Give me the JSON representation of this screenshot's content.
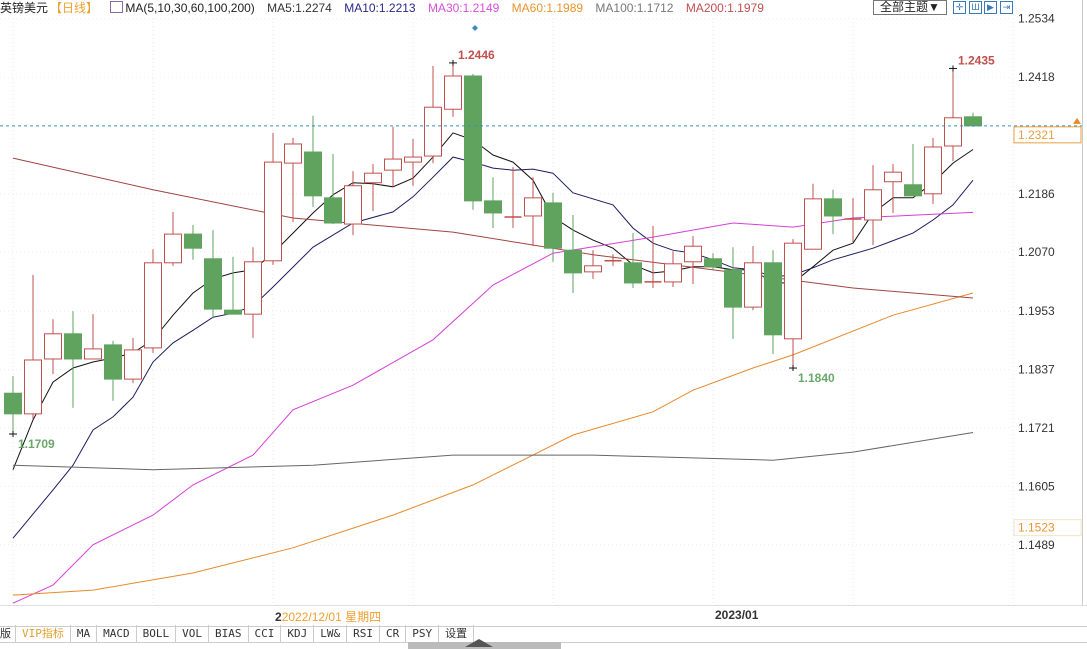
{
  "header": {
    "title": "英镑美元",
    "period": "【日线】",
    "ma_params": "MA(5,10,30,60,100,200)",
    "ma_values": [
      {
        "label": "MA5:1.2274",
        "color": "#333333"
      },
      {
        "label": "MA10:1.2213",
        "color": "#2a2a8a"
      },
      {
        "label": "MA30:1.2149",
        "color": "#d94fd9"
      },
      {
        "label": "MA60:1.1989",
        "color": "#e8952e"
      },
      {
        "label": "MA100:1.1712",
        "color": "#777777"
      },
      {
        "label": "MA200:1.1979",
        "color": "#c0504d"
      }
    ],
    "theme_button": "全部主题▼",
    "toolbar_icons": [
      "crosshair-icon",
      "candle-icon",
      "play-candle-icon",
      "exit-right-icon"
    ]
  },
  "date_axis": {
    "cursor_prefix": "2",
    "cursor_label": "2022/12/01 星期四",
    "month_label": "2023/01"
  },
  "tabs": [
    "版",
    "VIP指标",
    "MA",
    "MACD",
    "BOLL",
    "VOL",
    "BIAS",
    "CCI",
    "KDJ",
    "LW&",
    "RSI",
    "CR",
    "PSY",
    "设置"
  ],
  "chart_data": {
    "type": "candlestick",
    "symbol": "英镑美元",
    "ylim": [
      1.1455,
      1.256
    ],
    "y_ticks": [
      "1.2534",
      "1.2418",
      "1.2186",
      "1.2070",
      "1.1953",
      "1.1837",
      "1.1721",
      "1.1605",
      "1.1489"
    ],
    "current_price": {
      "label": "1.2321",
      "value": 1.2321
    },
    "extra_axis_tag": {
      "label": "1.1523",
      "value": 1.1523,
      "color": "#e8952e"
    },
    "colors": {
      "up": "#c0504d",
      "down": "#5fa35f",
      "current_line": "#3a8dbf"
    },
    "annotations": [
      {
        "label": "1.2446",
        "index": 22,
        "value": 1.2446,
        "kind": "high"
      },
      {
        "label": "1.2435",
        "index": 47,
        "value": 1.2435,
        "kind": "high"
      },
      {
        "label": "1.1709",
        "index": 0,
        "value": 1.1709,
        "kind": "low"
      },
      {
        "label": "1.1840",
        "index": 39,
        "value": 1.184,
        "kind": "low"
      }
    ],
    "candles": [
      [
        1.179,
        1.1824,
        1.1709,
        1.1749
      ],
      [
        1.1749,
        1.2025,
        1.1739,
        1.1856
      ],
      [
        1.1858,
        1.1937,
        1.1828,
        1.1908
      ],
      [
        1.1908,
        1.1953,
        1.1761,
        1.1858
      ],
      [
        1.1858,
        1.1947,
        1.1858,
        1.1878
      ],
      [
        1.1886,
        1.1894,
        1.1775,
        1.1818
      ],
      [
        1.1818,
        1.19,
        1.181,
        1.1876
      ],
      [
        1.188,
        1.2076,
        1.187,
        1.2049
      ],
      [
        1.2049,
        1.215,
        1.2043,
        1.2106
      ],
      [
        1.2106,
        1.2124,
        1.2055,
        1.2078
      ],
      [
        1.2057,
        1.2114,
        1.1939,
        1.1957
      ],
      [
        1.1955,
        1.2061,
        1.1947,
        1.1947
      ],
      [
        1.1947,
        1.208,
        1.19,
        1.2051
      ],
      [
        1.2053,
        1.2307,
        1.2045,
        1.2249
      ],
      [
        1.2247,
        1.2297,
        1.213,
        1.2285
      ],
      [
        1.2269,
        1.2341,
        1.216,
        1.2182
      ],
      [
        1.2178,
        1.2265,
        1.2126,
        1.2128
      ],
      [
        1.2126,
        1.2231,
        1.2104,
        1.2202
      ],
      [
        1.2208,
        1.2245,
        1.2152,
        1.2227
      ],
      [
        1.2233,
        1.2319,
        1.22,
        1.2255
      ],
      [
        1.2249,
        1.2295,
        1.2202,
        1.2259
      ],
      [
        1.2261,
        1.244,
        1.2247,
        1.2358
      ],
      [
        1.2354,
        1.2446,
        1.2339,
        1.242
      ],
      [
        1.242,
        1.2424,
        1.2154,
        1.2172
      ],
      [
        1.2172,
        1.2219,
        1.2118,
        1.2148
      ],
      [
        1.214,
        1.2239,
        1.2118,
        1.214
      ],
      [
        1.2142,
        1.2219,
        1.2082,
        1.2178
      ],
      [
        1.2168,
        1.2188,
        1.2051,
        1.2078
      ],
      [
        1.2074,
        1.2144,
        1.1989,
        1.2029
      ],
      [
        1.2031,
        1.2074,
        1.2017,
        1.2043
      ],
      [
        1.2053,
        1.2066,
        1.2043,
        1.2053
      ],
      [
        1.2049,
        1.2108,
        1.1999,
        1.2009
      ],
      [
        1.2011,
        1.2122,
        1.1999,
        1.2011
      ],
      [
        1.2011,
        1.2072,
        1.2001,
        1.2047
      ],
      [
        1.2051,
        1.2102,
        1.2007,
        1.2082
      ],
      [
        1.2057,
        1.2068,
        1.2035,
        1.2041
      ],
      [
        1.2035,
        1.208,
        1.1898,
        1.1961
      ],
      [
        1.1961,
        1.2082,
        1.1955,
        1.2049
      ],
      [
        1.2049,
        1.2074,
        1.1868,
        1.1906
      ],
      [
        1.1898,
        1.2096,
        1.184,
        1.2088
      ],
      [
        1.2076,
        1.2206,
        1.2076,
        1.2176
      ],
      [
        1.2176,
        1.2194,
        1.2106,
        1.2142
      ],
      [
        1.2136,
        1.2178,
        1.209,
        1.2136
      ],
      [
        1.2134,
        1.2243,
        1.2084,
        1.2194
      ],
      [
        1.221,
        1.2245,
        1.2148,
        1.2229
      ],
      [
        1.2204,
        1.2285,
        1.2182,
        1.2182
      ],
      [
        1.2186,
        1.2297,
        1.2166,
        1.2279
      ],
      [
        1.2281,
        1.2435,
        1.2251,
        1.2337
      ],
      [
        1.2339,
        1.2347,
        1.2319,
        1.2321
      ]
    ],
    "candle_fields": [
      "open",
      "high",
      "low",
      "close"
    ],
    "moving_averages": [
      {
        "name": "MA5",
        "color": "#111111",
        "points": [
          [
            0,
            1.1638
          ],
          [
            1,
            1.1737
          ],
          [
            2,
            1.1812
          ],
          [
            3,
            1.184
          ],
          [
            4,
            1.1852
          ],
          [
            5,
            1.186
          ],
          [
            6,
            1.187
          ],
          [
            7,
            1.1896
          ],
          [
            8,
            1.1945
          ],
          [
            9,
            1.1989
          ],
          [
            10,
            1.2017
          ],
          [
            11,
            1.2029
          ],
          [
            12,
            1.2035
          ],
          [
            13,
            1.2068
          ],
          [
            14,
            1.2108
          ],
          [
            15,
            1.2148
          ],
          [
            16,
            1.2184
          ],
          [
            17,
            1.2208
          ],
          [
            18,
            1.2206
          ],
          [
            19,
            1.22
          ],
          [
            20,
            1.2217
          ],
          [
            21,
            1.2259
          ],
          [
            22,
            1.2307
          ],
          [
            23,
            1.2293
          ],
          [
            24,
            1.2263
          ],
          [
            25,
            1.2249
          ],
          [
            26,
            1.2213
          ],
          [
            27,
            1.214
          ],
          [
            28,
            1.2114
          ],
          [
            29,
            1.2094
          ],
          [
            30,
            1.2078
          ],
          [
            31,
            1.2045
          ],
          [
            32,
            1.2029
          ],
          [
            33,
            1.2033
          ],
          [
            34,
            1.2041
          ],
          [
            35,
            1.2041
          ],
          [
            36,
            1.2035
          ],
          [
            37,
            1.2035
          ],
          [
            38,
            1.2009
          ],
          [
            39,
            1.2009
          ],
          [
            40,
            1.2041
          ],
          [
            41,
            1.2074
          ],
          [
            42,
            1.2088
          ],
          [
            43,
            1.2148
          ],
          [
            44,
            1.2178
          ],
          [
            45,
            1.2178
          ],
          [
            46,
            1.2208
          ],
          [
            47,
            1.2247
          ],
          [
            48,
            1.2274
          ]
        ]
      },
      {
        "name": "MA10",
        "color": "#1c1c5e",
        "points": [
          [
            0,
            1.1502
          ],
          [
            2,
            1.1598
          ],
          [
            3,
            1.1647
          ],
          [
            4,
            1.1717
          ],
          [
            5,
            1.1743
          ],
          [
            6,
            1.1782
          ],
          [
            7,
            1.1852
          ],
          [
            8,
            1.189
          ],
          [
            9,
            1.1915
          ],
          [
            10,
            1.1941
          ],
          [
            11,
            1.1949
          ],
          [
            12,
            1.1963
          ],
          [
            13,
            1.2001
          ],
          [
            15,
            1.208
          ],
          [
            16,
            1.2104
          ],
          [
            17,
            1.2128
          ],
          [
            19,
            1.215
          ],
          [
            20,
            1.218
          ],
          [
            21,
            1.2219
          ],
          [
            22,
            1.2259
          ],
          [
            23,
            1.2249
          ],
          [
            24,
            1.2237
          ],
          [
            25,
            1.2233
          ],
          [
            26,
            1.2235
          ],
          [
            27,
            1.2227
          ],
          [
            28,
            1.2188
          ],
          [
            30,
            1.2164
          ],
          [
            31,
            1.2118
          ],
          [
            32,
            1.2088
          ],
          [
            33,
            1.2074
          ],
          [
            34,
            1.2068
          ],
          [
            35,
            1.2055
          ],
          [
            36,
            1.2039
          ],
          [
            37,
            1.2035
          ],
          [
            38,
            1.2021
          ],
          [
            39,
            1.2025
          ],
          [
            40,
            1.2039
          ],
          [
            41,
            1.2055
          ],
          [
            43,
            1.2078
          ],
          [
            45,
            1.2108
          ],
          [
            46,
            1.2134
          ],
          [
            47,
            1.2164
          ],
          [
            48,
            1.2213
          ]
        ]
      },
      {
        "name": "MA30",
        "color": "#d63fd6",
        "points": [
          [
            0,
            1.1373
          ],
          [
            2,
            1.1409
          ],
          [
            4,
            1.1489
          ],
          [
            7,
            1.1548
          ],
          [
            9,
            1.1608
          ],
          [
            12,
            1.1667
          ],
          [
            14,
            1.1757
          ],
          [
            17,
            1.1806
          ],
          [
            21,
            1.1896
          ],
          [
            24,
            1.2005
          ],
          [
            27,
            1.2068
          ],
          [
            32,
            1.21
          ],
          [
            36,
            1.2128
          ],
          [
            39,
            1.212
          ],
          [
            42,
            1.2138
          ],
          [
            48,
            1.2149
          ]
        ]
      },
      {
        "name": "MA60",
        "color": "#e8892a",
        "points": [
          [
            0,
            1.1389
          ],
          [
            4,
            1.1399
          ],
          [
            9,
            1.1433
          ],
          [
            14,
            1.1483
          ],
          [
            19,
            1.1548
          ],
          [
            23,
            1.1608
          ],
          [
            26,
            1.1667
          ],
          [
            28,
            1.1707
          ],
          [
            32,
            1.1753
          ],
          [
            34,
            1.1796
          ],
          [
            37,
            1.184
          ],
          [
            39,
            1.1866
          ],
          [
            44,
            1.1945
          ],
          [
            48,
            1.1989
          ]
        ]
      },
      {
        "name": "MA100",
        "color": "#666666",
        "points": [
          [
            0,
            1.1647
          ],
          [
            7,
            1.1638
          ],
          [
            15,
            1.1647
          ],
          [
            22,
            1.1667
          ],
          [
            29,
            1.1667
          ],
          [
            38,
            1.1657
          ],
          [
            42,
            1.1673
          ],
          [
            48,
            1.1712
          ]
        ]
      },
      {
        "name": "MA200",
        "color": "#a0443f",
        "points": [
          [
            0,
            1.2257
          ],
          [
            7,
            1.2194
          ],
          [
            14,
            1.2138
          ],
          [
            22,
            1.211
          ],
          [
            29,
            1.2065
          ],
          [
            37,
            1.2025
          ],
          [
            42,
            1.1999
          ],
          [
            48,
            1.1979
          ]
        ]
      }
    ]
  }
}
